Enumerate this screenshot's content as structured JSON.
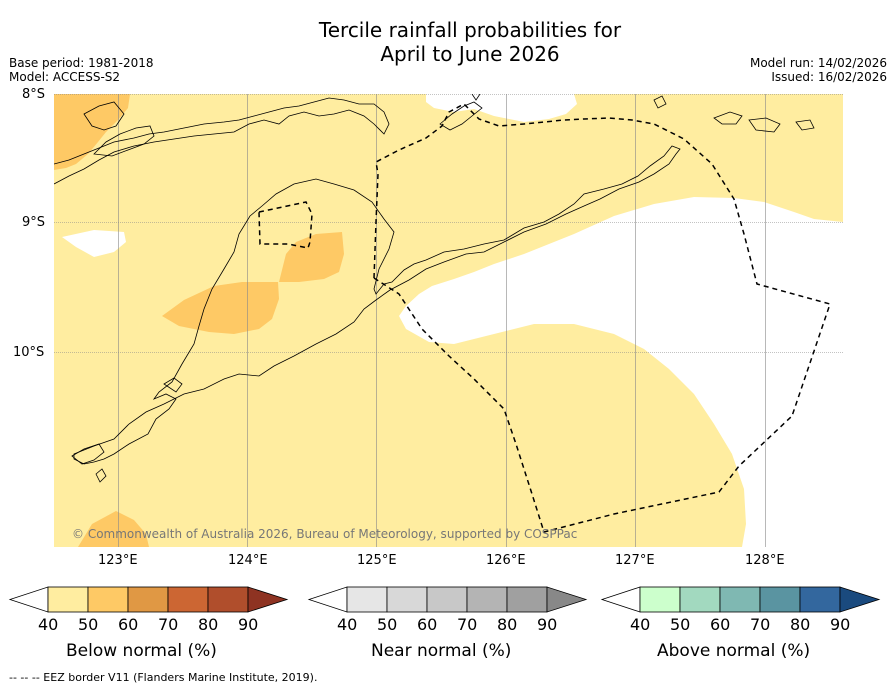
{
  "title_line1": "Tercile rainfall probabilities for",
  "title_line2": "April to June 2026",
  "meta": {
    "base_period": "Base period: 1981-2018",
    "model": "Model: ACCESS-S2",
    "model_run": "Model run: 14/02/2026",
    "issued": "Issued: 16/02/2026"
  },
  "latitude_labels": [
    "8°S",
    "9°S",
    "10°S"
  ],
  "longitude_labels": [
    "123°E",
    "124°E",
    "125°E",
    "126°E",
    "127°E",
    "128°E"
  ],
  "copyright": "© Commonwealth of Australia 2026, Bureau of Meteorology, supported by COSPPac",
  "colorbars": [
    {
      "title": "Below normal (%)",
      "ticks": [
        "40",
        "50",
        "60",
        "70",
        "80",
        "90"
      ],
      "colors": [
        "#ffeda0",
        "#fec965",
        "#e09844",
        "#cc6633",
        "#b04e2c",
        "#8e3322"
      ]
    },
    {
      "title": "Near normal (%)",
      "ticks": [
        "40",
        "50",
        "60",
        "70",
        "80",
        "90"
      ],
      "colors": [
        "#e6e6e6",
        "#d8d8d8",
        "#c8c8c8",
        "#b4b4b4",
        "#a0a0a0",
        "#888888"
      ]
    },
    {
      "title": "Above normal (%)",
      "ticks": [
        "40",
        "50",
        "60",
        "70",
        "80",
        "90"
      ],
      "colors": [
        "#ccffcc",
        "#a2d9bf",
        "#7fb8b2",
        "#5a94a1",
        "#33679e",
        "#1a4a7e"
      ]
    }
  ],
  "footnote": "--  --  -- EEZ border V11 (Flanders Marine Institute, 2019).",
  "colors": {
    "below_40_50": "#ffeda0",
    "below_50_60": "#fec965",
    "no_signal": "#ffffff",
    "coast": "#000000",
    "eez": "#000000",
    "grid": "#888888"
  }
}
